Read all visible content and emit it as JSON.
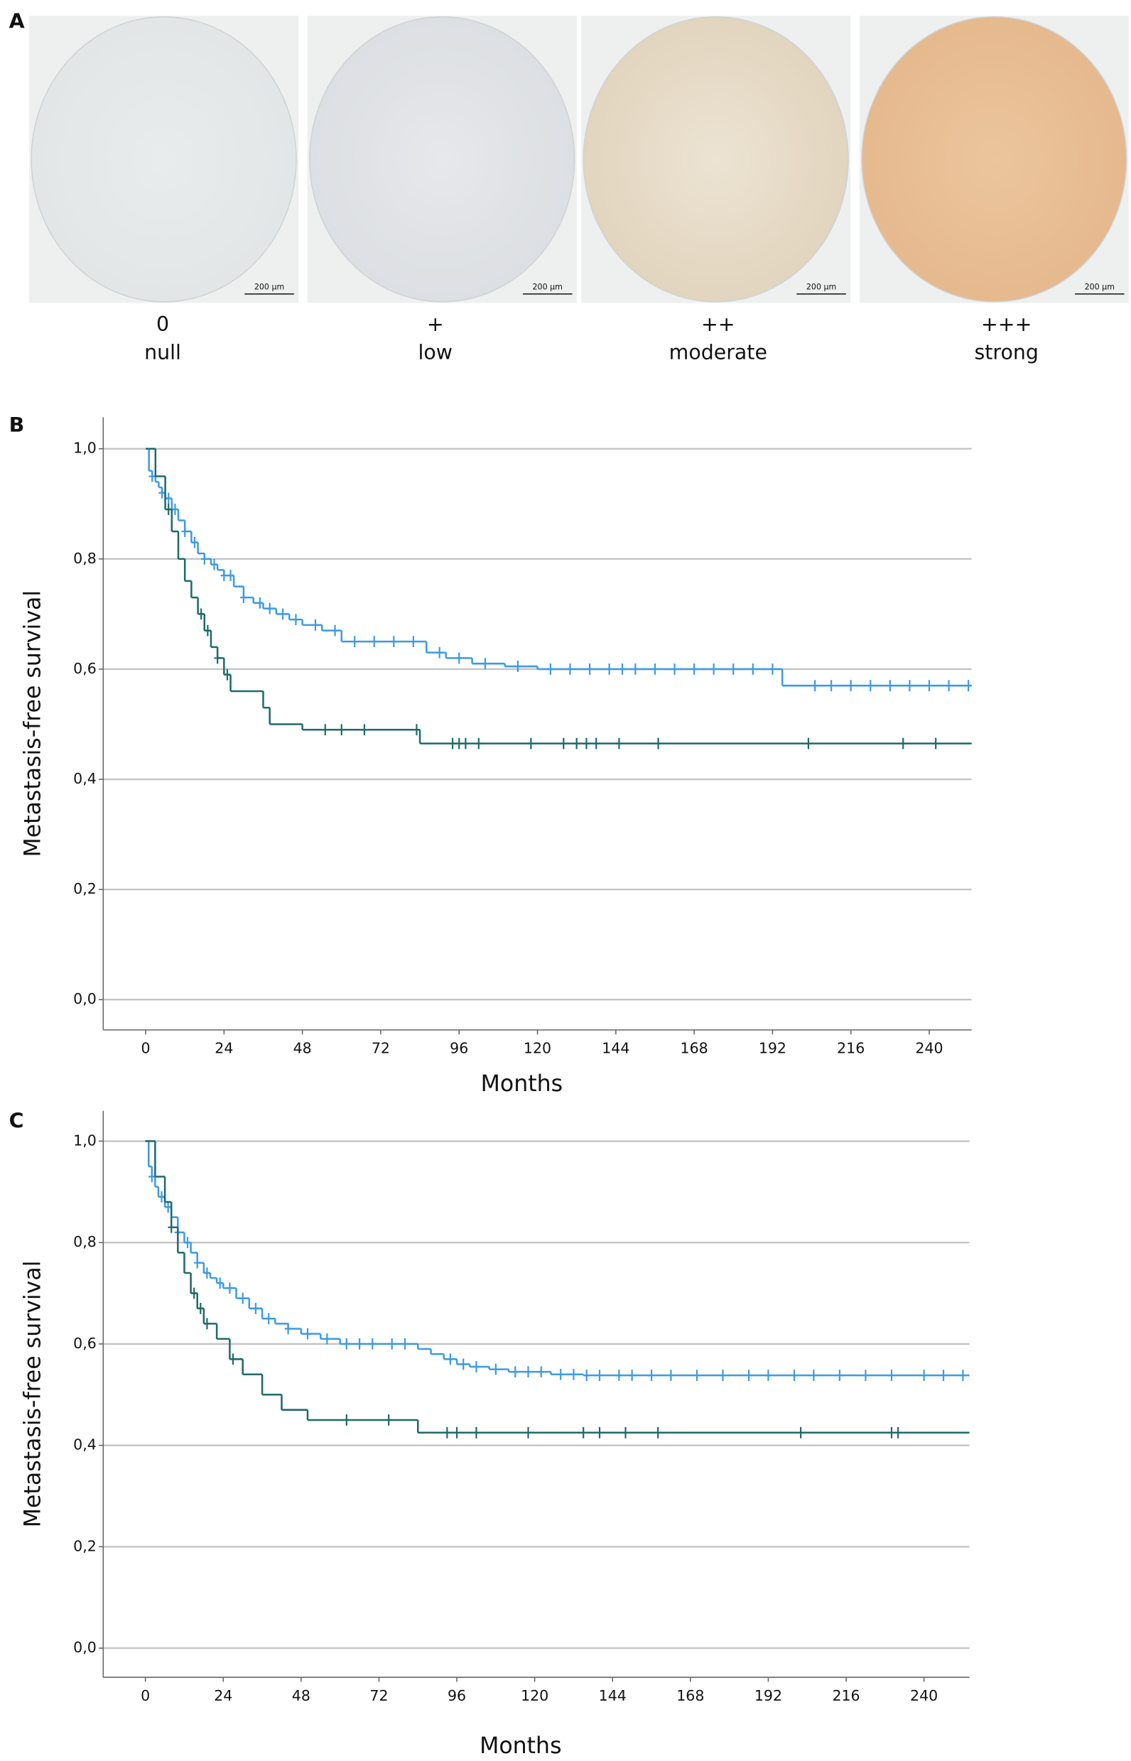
{
  "figure_a": {
    "panel_label": "A",
    "cores": [
      {
        "grade": "0",
        "label": "null",
        "scale_bar": "200 µm"
      },
      {
        "grade": "+",
        "label": "low",
        "scale_bar": "200 µm"
      },
      {
        "grade": "++",
        "label": "moderate",
        "scale_bar": "200 µm"
      },
      {
        "grade": "+++",
        "label": "strong",
        "scale_bar": "200 µm"
      }
    ]
  },
  "chart_data": [
    {
      "type": "step",
      "panel_label": "B",
      "xlabel": "Months",
      "ylabel": "Metastasis-free survival",
      "xlim": [
        -13,
        253
      ],
      "ylim": [
        -0.055,
        1.057
      ],
      "xticks": [
        0,
        24,
        48,
        72,
        96,
        120,
        144,
        168,
        192,
        216,
        240
      ],
      "yticks": [
        {
          "value": 0,
          "label": "0,0"
        },
        {
          "value": 0.2,
          "label": "0,2"
        },
        {
          "value": 0.4,
          "label": "0,4"
        },
        {
          "value": 0.6,
          "label": "0,6"
        },
        {
          "value": 0.8,
          "label": "0,8"
        },
        {
          "value": 1,
          "label": "1,0"
        }
      ],
      "grid": true,
      "series": [
        {
          "color": "#3d9be0",
          "x": [
            0,
            1,
            2,
            3,
            4,
            5,
            6,
            8,
            10,
            12,
            14,
            16,
            18,
            20,
            22,
            24,
            27,
            30,
            33,
            36,
            40,
            44,
            48,
            54,
            60,
            86,
            92,
            100,
            110,
            120,
            195,
            253
          ],
          "values": [
            1.0,
            0.96,
            0.95,
            0.94,
            0.93,
            0.92,
            0.91,
            0.89,
            0.87,
            0.85,
            0.83,
            0.81,
            0.8,
            0.79,
            0.78,
            0.77,
            0.75,
            0.73,
            0.72,
            0.71,
            0.7,
            0.69,
            0.68,
            0.67,
            0.65,
            0.63,
            0.62,
            0.61,
            0.605,
            0.6,
            0.57,
            0.57
          ],
          "censor_x": [
            2,
            5,
            7,
            9,
            12,
            15,
            18,
            21,
            24,
            26,
            30,
            35,
            38,
            42,
            46,
            52,
            58,
            64,
            70,
            76,
            82,
            90,
            96,
            104,
            114,
            124,
            130,
            136,
            142,
            146,
            150,
            156,
            162,
            168,
            174,
            180,
            186,
            192,
            205,
            210,
            216,
            222,
            228,
            234,
            240,
            246,
            252
          ],
          "censor_values": [
            0.95,
            0.92,
            0.91,
            0.89,
            0.85,
            0.83,
            0.8,
            0.79,
            0.77,
            0.77,
            0.73,
            0.72,
            0.71,
            0.7,
            0.69,
            0.68,
            0.67,
            0.65,
            0.65,
            0.65,
            0.65,
            0.63,
            0.62,
            0.61,
            0.605,
            0.6,
            0.6,
            0.6,
            0.6,
            0.6,
            0.6,
            0.6,
            0.6,
            0.6,
            0.6,
            0.6,
            0.6,
            0.6,
            0.57,
            0.57,
            0.57,
            0.57,
            0.57,
            0.57,
            0.57,
            0.57,
            0.57
          ]
        },
        {
          "color": "#1f6a68",
          "x": [
            0,
            3,
            6,
            8,
            10,
            12,
            14,
            16,
            18,
            20,
            22,
            24,
            26,
            36,
            38,
            48,
            84,
            253
          ],
          "values": [
            1.0,
            0.95,
            0.89,
            0.85,
            0.8,
            0.76,
            0.73,
            0.7,
            0.67,
            0.64,
            0.62,
            0.59,
            0.56,
            0.53,
            0.5,
            0.49,
            0.465,
            0.465
          ],
          "censor_x": [
            7,
            17,
            19,
            22,
            25,
            55,
            60,
            67,
            83,
            94,
            96,
            98,
            102,
            118,
            128,
            132,
            135,
            138,
            145,
            157,
            203,
            232,
            242
          ],
          "censor_values": [
            0.89,
            0.7,
            0.67,
            0.62,
            0.59,
            0.49,
            0.49,
            0.49,
            0.49,
            0.465,
            0.465,
            0.465,
            0.465,
            0.465,
            0.465,
            0.465,
            0.465,
            0.465,
            0.465,
            0.465,
            0.465,
            0.465,
            0.465
          ]
        }
      ]
    },
    {
      "type": "step",
      "panel_label": "C",
      "xlabel": "Months",
      "ylabel": "Metastasis-free survival",
      "xlim": [
        -13,
        254
      ],
      "ylim": [
        -0.0575,
        1.06
      ],
      "xticks": [
        0,
        24,
        48,
        72,
        96,
        120,
        144,
        168,
        192,
        216,
        240
      ],
      "yticks": [
        {
          "value": 0,
          "label": "0,0"
        },
        {
          "value": 0.2,
          "label": "0,2"
        },
        {
          "value": 0.4,
          "label": "0,4"
        },
        {
          "value": 0.6,
          "label": "0,6"
        },
        {
          "value": 0.8,
          "label": "0,8"
        },
        {
          "value": 1,
          "label": "1,0"
        }
      ],
      "grid": true,
      "series": [
        {
          "color": "#3d9be0",
          "x": [
            0,
            1,
            2,
            3,
            4,
            6,
            8,
            10,
            12,
            14,
            16,
            18,
            20,
            22,
            24,
            28,
            32,
            36,
            40,
            44,
            48,
            54,
            60,
            84,
            88,
            92,
            96,
            100,
            106,
            112,
            125,
            135,
            254
          ],
          "values": [
            1.0,
            0.95,
            0.93,
            0.91,
            0.89,
            0.87,
            0.85,
            0.82,
            0.8,
            0.78,
            0.76,
            0.74,
            0.73,
            0.72,
            0.71,
            0.69,
            0.67,
            0.65,
            0.64,
            0.63,
            0.62,
            0.61,
            0.6,
            0.59,
            0.58,
            0.57,
            0.56,
            0.555,
            0.55,
            0.545,
            0.54,
            0.538,
            0.538
          ],
          "censor_x": [
            2,
            5,
            7,
            10,
            13,
            16,
            19,
            23,
            26,
            30,
            34,
            38,
            44,
            50,
            56,
            62,
            66,
            70,
            76,
            80,
            94,
            98,
            102,
            108,
            114,
            118,
            122,
            128,
            132,
            136,
            140,
            146,
            150,
            156,
            162,
            170,
            178,
            186,
            192,
            200,
            206,
            214,
            222,
            230,
            240,
            246,
            252
          ],
          "censor_values": [
            0.93,
            0.89,
            0.87,
            0.82,
            0.8,
            0.76,
            0.74,
            0.72,
            0.71,
            0.69,
            0.67,
            0.65,
            0.63,
            0.62,
            0.61,
            0.6,
            0.6,
            0.6,
            0.6,
            0.6,
            0.57,
            0.56,
            0.555,
            0.55,
            0.545,
            0.545,
            0.545,
            0.54,
            0.54,
            0.538,
            0.538,
            0.538,
            0.538,
            0.538,
            0.538,
            0.538,
            0.538,
            0.538,
            0.538,
            0.538,
            0.538,
            0.538,
            0.538,
            0.538,
            0.538,
            0.538,
            0.538
          ]
        },
        {
          "color": "#1f6a68",
          "x": [
            0,
            3,
            6,
            8,
            10,
            12,
            14,
            16,
            18,
            22,
            26,
            30,
            36,
            42,
            50,
            84,
            254
          ],
          "values": [
            1.0,
            0.93,
            0.88,
            0.83,
            0.78,
            0.74,
            0.7,
            0.67,
            0.64,
            0.61,
            0.57,
            0.54,
            0.5,
            0.47,
            0.45,
            0.425,
            0.425
          ],
          "censor_x": [
            8,
            15,
            17,
            19,
            27,
            62,
            75,
            93,
            96,
            102,
            118,
            135,
            140,
            148,
            158,
            202,
            230,
            232
          ],
          "censor_values": [
            0.83,
            0.7,
            0.67,
            0.64,
            0.57,
            0.45,
            0.45,
            0.425,
            0.425,
            0.425,
            0.425,
            0.425,
            0.425,
            0.425,
            0.425,
            0.425,
            0.425,
            0.425
          ]
        }
      ]
    }
  ]
}
